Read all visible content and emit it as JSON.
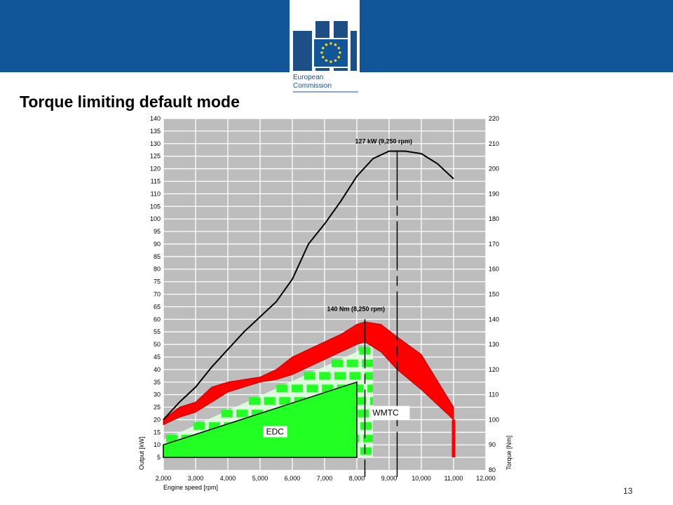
{
  "slide": {
    "title": "Torque limiting default mode",
    "page_number": "13",
    "brand_color": "#12569a"
  },
  "logo": {
    "line1": "European",
    "line2": "Commission",
    "icon": "european-commission-logo"
  },
  "chart_data": {
    "type": "line",
    "xlabel": "Engine speed [rpm]",
    "ylabel": "Output [kW]",
    "y2label": "Torque [Nm]",
    "xlim": [
      2000,
      12000
    ],
    "ylim": [
      0,
      140
    ],
    "y2lim": [
      80,
      220
    ],
    "grid": true,
    "x_ticks": [
      2000,
      3000,
      4000,
      5000,
      6000,
      7000,
      8000,
      9000,
      10000,
      11000,
      12000
    ],
    "x_tick_labels": [
      "2,000",
      "3,000",
      "4,000",
      "5,000",
      "6,000",
      "7,000",
      "8,000",
      "9,000",
      "10,000",
      "11,000",
      "12,000"
    ],
    "y_ticks": [
      5,
      10,
      15,
      20,
      25,
      30,
      35,
      40,
      45,
      50,
      55,
      60,
      65,
      70,
      75,
      80,
      85,
      90,
      95,
      100,
      105,
      110,
      115,
      120,
      125,
      130,
      135,
      140
    ],
    "y2_ticks": [
      80,
      90,
      100,
      110,
      120,
      130,
      140,
      150,
      160,
      170,
      180,
      190,
      200,
      210,
      220
    ],
    "series": [
      {
        "key": "power",
        "color": "#000000",
        "x": [
          2000,
          2500,
          3000,
          3500,
          4000,
          4500,
          5000,
          5500,
          6000,
          6500,
          7000,
          7500,
          8000,
          8500,
          9000,
          9250,
          9500,
          10000,
          10500,
          11000
        ],
        "y": [
          20,
          27,
          33,
          41,
          48,
          55,
          61,
          67,
          76,
          90,
          98,
          107,
          117,
          124,
          127,
          127,
          127,
          126,
          122,
          116
        ]
      }
    ],
    "torque_band": {
      "color": "#ff0000",
      "x": [
        2000,
        2500,
        3000,
        3500,
        4000,
        4500,
        5000,
        5500,
        6000,
        6500,
        7000,
        7500,
        8000,
        8250,
        8750,
        9250,
        10000,
        11000
      ],
      "upper": [
        100,
        105,
        107,
        113,
        115,
        116,
        117,
        120,
        125,
        128,
        131,
        134,
        138,
        139,
        138,
        133,
        126,
        105
      ],
      "lower": [
        98,
        101,
        103,
        107,
        111,
        113,
        115,
        116,
        118,
        121,
        124,
        127,
        130,
        131,
        127,
        120,
        112,
        100
      ]
    },
    "edc": {
      "label": "EDC",
      "color": "#22ff22",
      "x": [
        2000,
        8000
      ],
      "y_top": [
        10,
        35
      ]
    },
    "wmtc": {
      "label": "WMTC",
      "color": "#22ff22",
      "x": [
        2000,
        8500
      ],
      "y_top": [
        12,
        50
      ]
    },
    "annotations": [
      {
        "text": "127 kW (9,250 rpm)",
        "x": 9250,
        "axis": "left",
        "value": 127
      },
      {
        "text": "140 Nm (8,250 rpm)",
        "x": 8250,
        "axis": "right",
        "value": 140
      }
    ]
  }
}
